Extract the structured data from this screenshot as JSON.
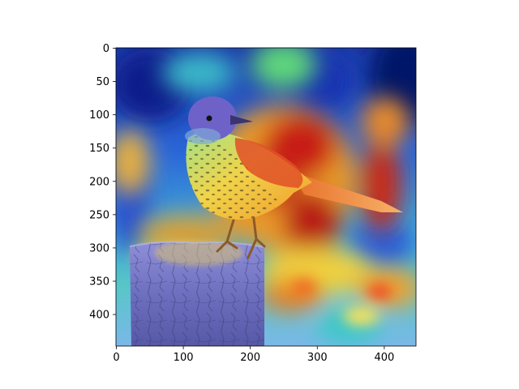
{
  "figure": {
    "type": "image-with-heatmap-overlay",
    "subject": "bird-on-wooden-post",
    "colormap": "jet",
    "background_color": "#ffffff"
  },
  "chart_data": {
    "type": "heatmap",
    "title": "",
    "xlabel": "",
    "ylabel": "",
    "xlim": [
      0,
      448
    ],
    "ylim": [
      448,
      0
    ],
    "xticks": [
      0,
      100,
      200,
      300,
      400
    ],
    "yticks": [
      0,
      50,
      100,
      150,
      200,
      250,
      300,
      350,
      400
    ],
    "xtick_labels": [
      "0",
      "100",
      "200",
      "300",
      "400"
    ],
    "ytick_labels": [
      "0",
      "50",
      "100",
      "150",
      "200",
      "250",
      "300",
      "350",
      "400"
    ],
    "grid": false,
    "legend": "none",
    "hotspots": [
      {
        "x": 265,
        "y": 150,
        "level": 0.95
      },
      {
        "x": 245,
        "y": 205,
        "level": 0.9
      },
      {
        "x": 395,
        "y": 205,
        "level": 0.9
      },
      {
        "x": 280,
        "y": 265,
        "level": 0.85
      },
      {
        "x": 120,
        "y": 35,
        "level": 0.55
      },
      {
        "x": 410,
        "y": 355,
        "level": 0.8
      },
      {
        "x": 260,
        "y": 355,
        "level": 0.75
      },
      {
        "x": 335,
        "y": 380,
        "level": 0.5
      },
      {
        "x": 20,
        "y": 175,
        "level": 0.65
      }
    ],
    "coldspots": [
      {
        "x": 50,
        "y": 60,
        "level": 0.05
      },
      {
        "x": 430,
        "y": 60,
        "level": 0.0
      },
      {
        "x": 80,
        "y": 410,
        "level": 0.1
      },
      {
        "x": 410,
        "y": 440,
        "level": 0.15
      }
    ]
  }
}
